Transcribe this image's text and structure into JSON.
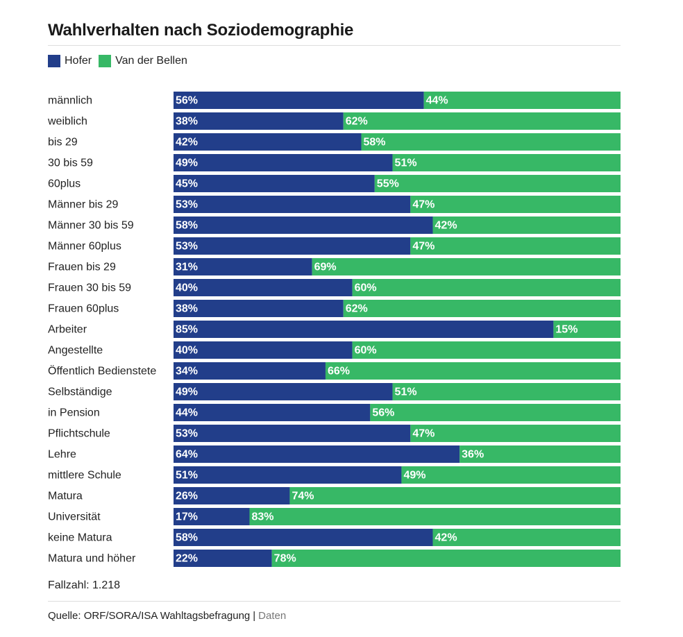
{
  "title": "Wahlverhalten nach Soziodemographie",
  "colors": {
    "hofer": "#223e8a",
    "vdb": "#37b866"
  },
  "legend": [
    {
      "name": "Hofer",
      "color": "#223e8a"
    },
    {
      "name": "Van der Bellen",
      "color": "#37b866"
    }
  ],
  "chart_data": {
    "type": "bar",
    "orientation": "horizontal",
    "stacked": true,
    "categories": [
      "männlich",
      "weiblich",
      "bis 29",
      "30 bis 59",
      "60plus",
      "Männer bis 29",
      "Männer 30 bis 59",
      "Männer 60plus",
      "Frauen bis 29",
      "Frauen 30 bis 59",
      "Frauen 60plus",
      "Arbeiter",
      "Angestellte",
      "Öffentlich Bedienstete",
      "Selbständige",
      "in Pension",
      "Pflichtschule",
      "Lehre",
      "mittlere Schule",
      "Matura",
      "Universität",
      "keine Matura",
      "Matura und höher"
    ],
    "series": [
      {
        "name": "Hofer",
        "color": "#223e8a",
        "values": [
          56,
          38,
          42,
          49,
          45,
          53,
          58,
          53,
          31,
          40,
          38,
          85,
          40,
          34,
          49,
          44,
          53,
          64,
          51,
          26,
          17,
          58,
          22
        ]
      },
      {
        "name": "Van der Bellen",
        "color": "#37b866",
        "values": [
          44,
          62,
          58,
          51,
          55,
          47,
          42,
          47,
          69,
          60,
          62,
          15,
          60,
          66,
          51,
          56,
          47,
          36,
          49,
          74,
          83,
          42,
          78
        ]
      }
    ],
    "value_suffix": "%",
    "xlim": [
      0,
      100
    ],
    "legend_position": "top-left",
    "grid": false
  },
  "footer": {
    "caseload": "Fallzahl: 1.218",
    "source": "Quelle: ORF/SORA/ISA Wahltagsbefragung",
    "separator": "|",
    "data_link": "Daten"
  }
}
